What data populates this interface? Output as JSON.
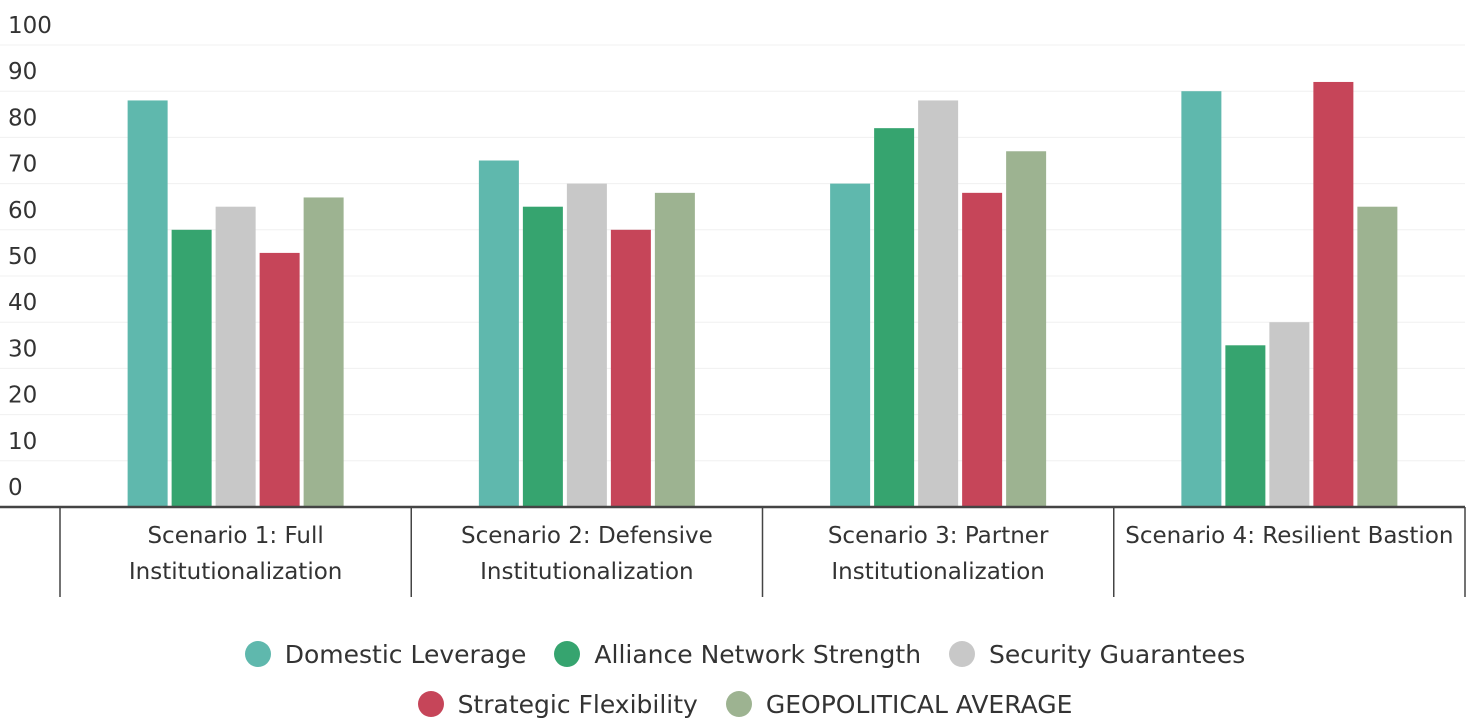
{
  "chart_data": {
    "type": "bar",
    "categories": [
      "Scenario 1: Full Institutionalization",
      "Scenario 2: Defensive Institutionalization",
      "Scenario 3: Partner Institutionalization",
      "Scenario 4: Resilient Bastion"
    ],
    "series": [
      {
        "name": "Domestic Leverage",
        "color": "#5fb8ad",
        "values": [
          88,
          75,
          70,
          90
        ]
      },
      {
        "name": "Alliance Network Strength",
        "color": "#36a46f",
        "values": [
          60,
          65,
          82,
          35
        ]
      },
      {
        "name": "Security Guarantees",
        "color": "#c8c8c8",
        "values": [
          65,
          70,
          88,
          40
        ]
      },
      {
        "name": "Strategic Flexibility",
        "color": "#c64559",
        "values": [
          55,
          60,
          68,
          92
        ]
      },
      {
        "name": "GEOPOLITICAL AVERAGE",
        "color": "#9db391",
        "values": [
          67,
          68,
          77,
          65
        ]
      }
    ],
    "ylim": [
      0,
      100
    ],
    "yticks": [
      0,
      10,
      20,
      30,
      40,
      50,
      60,
      70,
      80,
      90,
      100
    ],
    "grid": true
  }
}
